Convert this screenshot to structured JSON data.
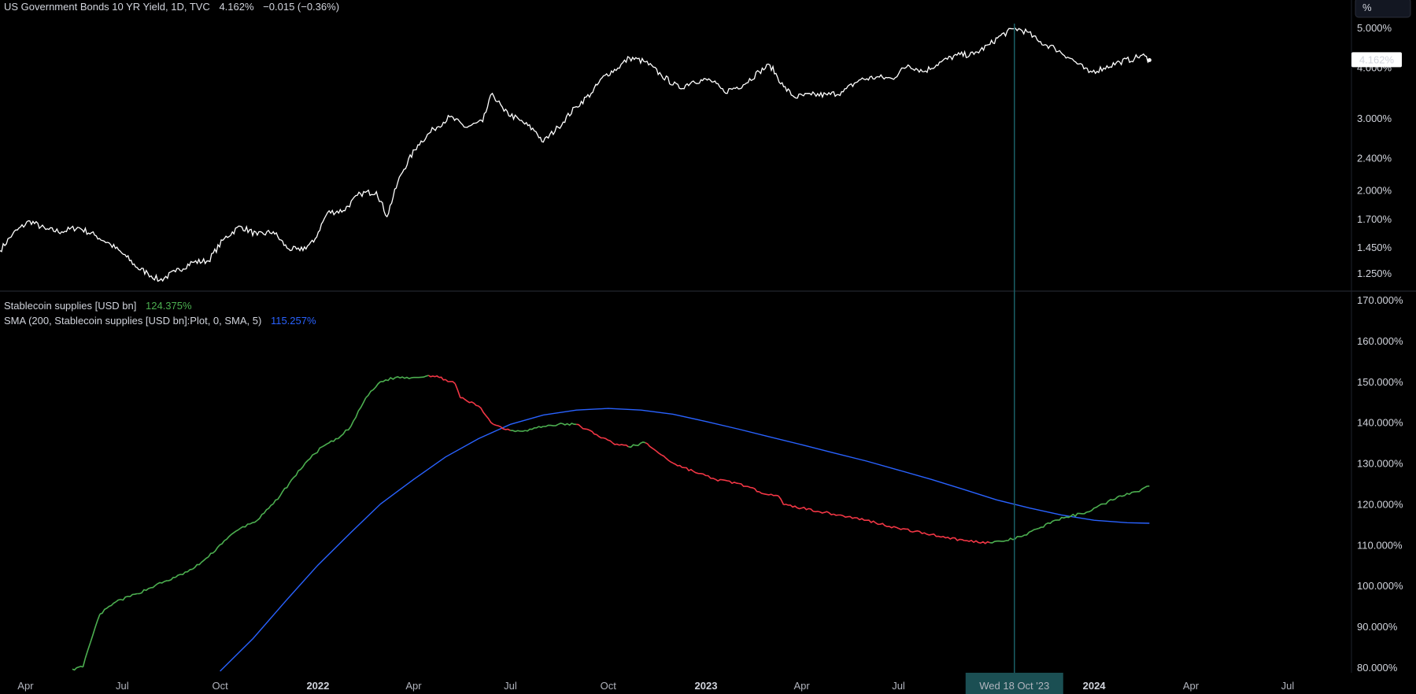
{
  "chart_data": [
    {
      "type": "line",
      "title": "US Government Bonds 10 YR Yield, 1D, TVC",
      "last_value": "4.162%",
      "change": "−0.015 (−0.36%)",
      "ylabel": "%",
      "scale": "log",
      "ylim": [
        1.15,
        5.3
      ],
      "y_ticks": [
        1.25,
        1.45,
        1.7,
        2.0,
        2.4,
        3.0,
        4.0,
        5.0
      ],
      "y_tick_labels": [
        "1.250%",
        "1.450%",
        "1.700%",
        "2.000%",
        "2.400%",
        "3.000%",
        "4.000%",
        "5.000%"
      ],
      "price_label": "4.162%",
      "color": "#ffffff",
      "series": [
        {
          "x": [
            "2021-03-08",
            "2021-03-20",
            "2021-04-05",
            "2021-04-20",
            "2021-05-05",
            "2021-05-20",
            "2021-06-05",
            "2021-06-20",
            "2021-07-05",
            "2021-07-15",
            "2021-07-25",
            "2021-08-05",
            "2021-08-20",
            "2021-09-05",
            "2021-09-20",
            "2021-10-05",
            "2021-10-20",
            "2021-11-05",
            "2021-11-20",
            "2021-12-03",
            "2021-12-15",
            "2021-12-28",
            "2022-01-10",
            "2022-01-25",
            "2022-02-10",
            "2022-02-25",
            "2022-03-07",
            "2022-03-20",
            "2022-04-05",
            "2022-04-20",
            "2022-05-05",
            "2022-05-20",
            "2022-06-05",
            "2022-06-14",
            "2022-06-25",
            "2022-07-10",
            "2022-07-25",
            "2022-08-01",
            "2022-08-15",
            "2022-09-01",
            "2022-09-15",
            "2022-09-28",
            "2022-10-10",
            "2022-10-21",
            "2022-11-05",
            "2022-11-20",
            "2022-12-07",
            "2022-12-20",
            "2023-01-05",
            "2023-01-18",
            "2023-02-05",
            "2023-02-20",
            "2023-03-02",
            "2023-03-15",
            "2023-03-25",
            "2023-04-10",
            "2023-04-25",
            "2023-05-10",
            "2023-05-25",
            "2023-06-10",
            "2023-06-25",
            "2023-07-10",
            "2023-07-25",
            "2023-08-10",
            "2023-08-25",
            "2023-09-10",
            "2023-09-25",
            "2023-10-05",
            "2023-10-19",
            "2023-10-30",
            "2023-11-10",
            "2023-11-25",
            "2023-12-10",
            "2023-12-27",
            "2024-01-10",
            "2024-01-25",
            "2024-02-08",
            "2024-02-15",
            "2024-02-22"
          ],
          "y": [
            1.42,
            1.56,
            1.68,
            1.6,
            1.58,
            1.62,
            1.55,
            1.47,
            1.37,
            1.29,
            1.25,
            1.2,
            1.26,
            1.33,
            1.34,
            1.52,
            1.63,
            1.55,
            1.58,
            1.44,
            1.42,
            1.49,
            1.76,
            1.78,
            1.96,
            1.98,
            1.72,
            2.18,
            2.58,
            2.82,
            3.02,
            2.85,
            2.94,
            3.45,
            3.12,
            2.96,
            2.78,
            2.62,
            2.85,
            3.2,
            3.45,
            3.82,
            3.98,
            4.22,
            4.12,
            3.82,
            3.55,
            3.7,
            3.72,
            3.48,
            3.62,
            3.9,
            4.05,
            3.58,
            3.38,
            3.42,
            3.42,
            3.48,
            3.72,
            3.78,
            3.75,
            4.05,
            3.9,
            4.12,
            4.28,
            4.3,
            4.55,
            4.78,
            4.98,
            4.88,
            4.62,
            4.45,
            4.2,
            3.88,
            3.98,
            4.12,
            4.2,
            4.28,
            4.162
          ]
        }
      ]
    },
    {
      "type": "line",
      "legend": [
        {
          "name": "Stablecoin supplies [USD bn]",
          "value": "124.375%",
          "color": "#4caf50"
        },
        {
          "name": "SMA (200, Stablecoin supplies [USD bn]:Plot, 0, SMA, 5)",
          "value": "115.257%",
          "color": "#2962ff"
        }
      ],
      "ylim": [
        79,
        171
      ],
      "y_ticks": [
        80,
        90,
        100,
        110,
        120,
        130,
        140,
        150,
        160,
        170
      ],
      "y_tick_labels": [
        "80.000%",
        "90.000%",
        "100.000%",
        "110.000%",
        "120.000%",
        "130.000%",
        "140.000%",
        "150.000%",
        "160.000%",
        "170.000%"
      ],
      "series": [
        {
          "name": "Stablecoin supplies [USD bn]",
          "color_up": "#4caf50",
          "color_down": "#f23645",
          "x": [
            "2021-05-15",
            "2021-05-25",
            "2021-06-01",
            "2021-06-10",
            "2021-06-25",
            "2021-07-15",
            "2021-08-01",
            "2021-08-20",
            "2021-09-05",
            "2021-09-20",
            "2021-10-05",
            "2021-10-20",
            "2021-11-05",
            "2021-11-20",
            "2021-12-05",
            "2021-12-20",
            "2022-01-05",
            "2022-01-20",
            "2022-02-01",
            "2022-02-15",
            "2022-03-01",
            "2022-03-15",
            "2022-04-01",
            "2022-04-15",
            "2022-04-25",
            "2022-05-01",
            "2022-05-10",
            "2022-05-15",
            "2022-06-01",
            "2022-06-15",
            "2022-07-01",
            "2022-07-15",
            "2022-08-01",
            "2022-08-15",
            "2022-09-01",
            "2022-09-20",
            "2022-10-05",
            "2022-10-20",
            "2022-11-05",
            "2022-11-15",
            "2022-11-20",
            "2022-12-01",
            "2022-12-20",
            "2023-01-10",
            "2023-02-01",
            "2023-02-20",
            "2023-03-10",
            "2023-03-15",
            "2023-04-01",
            "2023-05-01",
            "2023-06-01",
            "2023-07-01",
            "2023-08-01",
            "2023-09-01",
            "2023-09-25",
            "2023-10-10",
            "2023-10-25",
            "2023-11-10",
            "2023-11-25",
            "2023-12-10",
            "2023-12-25",
            "2024-01-10",
            "2024-01-25",
            "2024-02-10",
            "2024-02-22"
          ],
          "y": [
            79.5,
            80,
            86,
            93,
            96,
            98,
            100,
            102,
            104,
            107,
            111,
            114,
            116,
            120,
            125,
            130,
            134,
            136,
            139,
            146,
            150,
            151,
            151,
            151.5,
            151,
            150.5,
            149.5,
            146,
            144,
            139.5,
            138,
            138,
            139,
            139.5,
            139.5,
            137,
            135,
            134,
            135,
            133,
            132,
            130,
            128,
            126,
            125,
            123,
            122,
            119.8,
            119,
            117.5,
            116,
            114,
            112.5,
            111,
            110.5,
            111,
            112,
            114,
            116,
            117,
            118,
            120,
            122,
            123,
            124.375
          ]
        },
        {
          "name": "SMA (200, Stablecoin supplies [USD bn]:Plot, 0, SMA, 5)",
          "color": "#2962ff",
          "x": [
            "2021-10-01",
            "2021-11-01",
            "2021-12-01",
            "2022-01-01",
            "2022-02-01",
            "2022-03-01",
            "2022-04-01",
            "2022-05-01",
            "2022-06-01",
            "2022-07-01",
            "2022-08-01",
            "2022-09-01",
            "2022-10-01",
            "2022-11-01",
            "2022-12-01",
            "2023-01-01",
            "2023-02-01",
            "2023-03-01",
            "2023-04-01",
            "2023-05-01",
            "2023-06-01",
            "2023-07-01",
            "2023-08-01",
            "2023-09-01",
            "2023-10-01",
            "2023-11-01",
            "2023-12-01",
            "2024-01-01",
            "2024-02-01",
            "2024-02-22"
          ],
          "y": [
            79,
            87,
            96,
            105,
            113,
            120,
            126,
            131.5,
            136,
            139.5,
            141.8,
            143,
            143.4,
            143,
            142,
            140.2,
            138.3,
            136.5,
            134.5,
            132.5,
            130.5,
            128.3,
            126,
            123.5,
            121,
            119,
            117.3,
            116,
            115.4,
            115.257
          ]
        }
      ]
    }
  ],
  "x_axis": {
    "labels": [
      {
        "text": "Apr",
        "date": "2021-04-01",
        "bold": false
      },
      {
        "text": "Jul",
        "date": "2021-07-01",
        "bold": false
      },
      {
        "text": "Oct",
        "date": "2021-10-01",
        "bold": false
      },
      {
        "text": "2022",
        "date": "2022-01-01",
        "bold": true
      },
      {
        "text": "Apr",
        "date": "2022-04-01",
        "bold": false
      },
      {
        "text": "Jul",
        "date": "2022-07-01",
        "bold": false
      },
      {
        "text": "Oct",
        "date": "2022-10-01",
        "bold": false
      },
      {
        "text": "2023",
        "date": "2023-01-01",
        "bold": true
      },
      {
        "text": "Apr",
        "date": "2023-04-01",
        "bold": false
      },
      {
        "text": "Jul",
        "date": "2023-07-01",
        "bold": false
      },
      {
        "text": "Oct",
        "date": "2023-10-01",
        "bold": false
      },
      {
        "text": "2024",
        "date": "2024-01-01",
        "bold": true
      },
      {
        "text": "Apr",
        "date": "2024-04-01",
        "bold": false
      },
      {
        "text": "Jul",
        "date": "2024-07-01",
        "bold": false
      }
    ],
    "range": [
      "2021-03-08",
      "2024-08-30"
    ],
    "crosshair_date": "2023-10-18",
    "crosshair_label": "Wed 18 Oct '23"
  },
  "colors": {
    "background": "#000000",
    "separator": "#2a2e39",
    "crosshair": "#1a5f66",
    "crosshair_label_bg": "#1b4f53",
    "axis_text": "#d1d4dc"
  }
}
